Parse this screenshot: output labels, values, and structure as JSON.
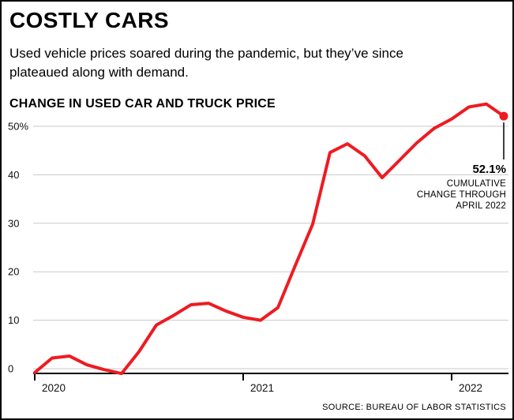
{
  "header": {
    "title": "COSTLY CARS",
    "subtitle_lines": [
      "Used vehicle prices soared during the pandemic, but they’ve since",
      "plateaued along with demand."
    ]
  },
  "chart_data": {
    "type": "line",
    "title": "CHANGE IN USED CAR AND TRUCK PRICE",
    "unit": "percent cumulative change in used car and truck prices",
    "x": [
      "Jan 2020",
      "Feb 2020",
      "Mar 2020",
      "Apr 2020",
      "May 2020",
      "Jun 2020",
      "Jul 2020",
      "Aug 2020",
      "Sep 2020",
      "Oct 2020",
      "Nov 2020",
      "Dec 2020",
      "Jan 2021",
      "Feb 2021",
      "Mar 2021",
      "Apr 2021",
      "May 2021",
      "Jun 2021",
      "Jul 2021",
      "Aug 2021",
      "Sep 2021",
      "Oct 2021",
      "Nov 2021",
      "Dec 2021",
      "Jan 2022",
      "Feb 2022",
      "Mar 2022",
      "Apr 2022"
    ],
    "values": [
      -0.8,
      2.2,
      2.6,
      0.8,
      -0.2,
      -1.0,
      3.5,
      9.0,
      11.0,
      13.2,
      13.5,
      11.9,
      10.6,
      10.0,
      12.6,
      21.3,
      29.8,
      44.6,
      46.4,
      43.9,
      39.4,
      43.0,
      46.6,
      49.6,
      51.5,
      54.0,
      54.6,
      52.1
    ],
    "x_tick_labels": [
      "2020",
      "2021",
      "2022"
    ],
    "y_ticks": [
      0,
      10,
      20,
      30,
      40,
      50
    ],
    "y_tick_labels": [
      "0",
      "10",
      "20",
      "30",
      "40",
      "50%"
    ],
    "ylim": [
      -2,
      56
    ],
    "grid": true,
    "legend": false,
    "line_color": "#ee1b22",
    "annotation": {
      "value": "52.1%",
      "lines": [
        "CUMULATIVE",
        "CHANGE THROUGH",
        "APRIL 2022"
      ],
      "target": {
        "x": "Apr 2022",
        "value": 52.1
      }
    },
    "source": "SOURCE: BUREAU OF LABOR STATISTICS"
  }
}
